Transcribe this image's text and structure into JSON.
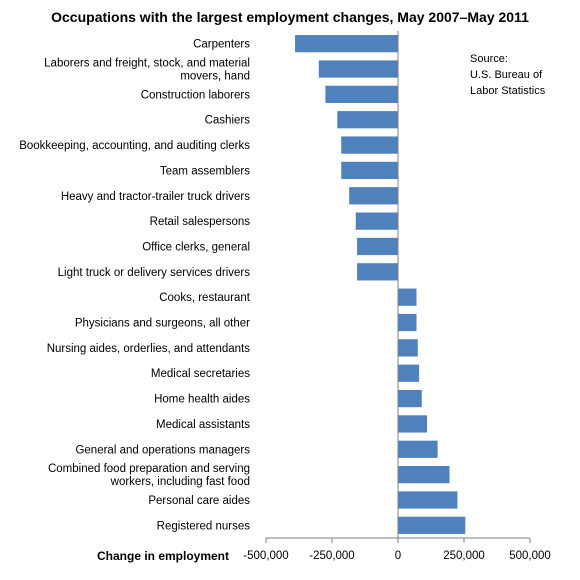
{
  "chart_data": {
    "type": "bar",
    "orientation": "horizontal",
    "title": "Occupations with the largest employment changes, May 2007–May 2011",
    "xlabel": "Change in employment",
    "ylabel": "",
    "xlim": [
      -500000,
      500000
    ],
    "xticks": [
      -500000,
      -250000,
      0,
      250000,
      500000
    ],
    "xtick_labels": [
      "-500,000",
      "-250,000",
      "0",
      "250,000",
      "500,000"
    ],
    "grid": false,
    "legend": "none",
    "bar_color": "#4f81bd",
    "source": [
      "Source:",
      "U.S. Bureau of",
      "Labor Statistics"
    ],
    "categories": [
      [
        "Carpenters"
      ],
      [
        "Laborers and freight, stock, and material",
        "movers, hand"
      ],
      [
        "Construction laborers"
      ],
      [
        "Cashiers"
      ],
      [
        "Bookkeeping, accounting, and auditing clerks"
      ],
      [
        "Team assemblers"
      ],
      [
        "Heavy and tractor-trailer truck drivers"
      ],
      [
        "Retail salespersons"
      ],
      [
        "Office clerks, general"
      ],
      [
        "Light truck or delivery services drivers"
      ],
      [
        "Cooks, restaurant"
      ],
      [
        "Physicians and surgeons, all other"
      ],
      [
        "Nursing aides, orderlies, and attendants"
      ],
      [
        "Medical secretaries"
      ],
      [
        "Home health aides"
      ],
      [
        "Medical assistants"
      ],
      [
        "General and operations managers"
      ],
      [
        "Combined food preparation and serving",
        "workers, including fast food"
      ],
      [
        "Personal care aides"
      ],
      [
        "Registered nurses"
      ]
    ],
    "values": [
      -390000,
      -300000,
      -275000,
      -230000,
      -215000,
      -215000,
      -185000,
      -160000,
      -155000,
      -155000,
      70000,
      70000,
      75000,
      80000,
      90000,
      110000,
      150000,
      195000,
      225000,
      255000
    ]
  }
}
